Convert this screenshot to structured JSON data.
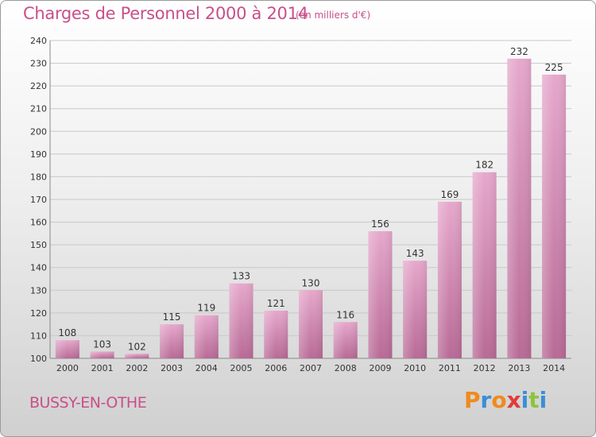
{
  "header": {
    "title": "Charges de Personnel 2000 à 2014",
    "unit": "(en milliers d'€)"
  },
  "footer": {
    "city": "BUSSY-EN-OTHE",
    "logo_letters": [
      "P",
      "r",
      "o",
      "x",
      "i",
      "t",
      "i"
    ],
    "logo_colors": [
      "#f08a1c",
      "#3a8fd6",
      "#f08a1c",
      "#e23a3a",
      "#3a8fd6",
      "#8bc53f",
      "#3a8fd6"
    ]
  },
  "colors": {
    "accent": "#c94f8a",
    "bar": "#c9689f"
  },
  "chart_data": {
    "type": "bar",
    "title": "Charges de Personnel 2000 à 2014",
    "subtitle": "(en milliers d'€)",
    "categories": [
      "2000",
      "2001",
      "2002",
      "2003",
      "2004",
      "2005",
      "2006",
      "2007",
      "2008",
      "2009",
      "2010",
      "2011",
      "2012",
      "2013",
      "2014"
    ],
    "values": [
      108,
      103,
      102,
      115,
      119,
      133,
      121,
      130,
      116,
      156,
      143,
      169,
      182,
      232,
      225
    ],
    "ylim": [
      100,
      240
    ],
    "yticks": [
      100,
      110,
      120,
      130,
      140,
      150,
      160,
      170,
      180,
      190,
      200,
      210,
      220,
      230,
      240
    ],
    "grid": true,
    "xlabel": "",
    "ylabel": ""
  }
}
